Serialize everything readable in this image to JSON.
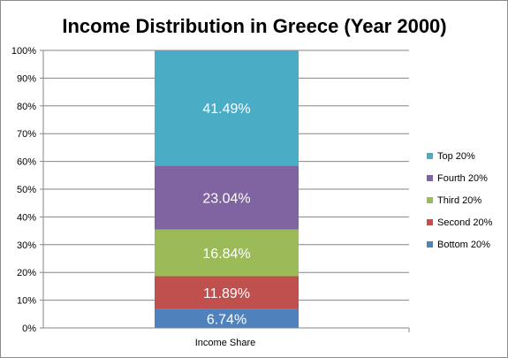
{
  "chart_data": {
    "type": "bar",
    "stacked": true,
    "title": "Income Distribution in Greece (Year 2000)",
    "categories": [
      "Income Share"
    ],
    "series": [
      {
        "name": "Bottom 20%",
        "values": [
          6.74
        ],
        "label": "6.74%",
        "color": "#4f81bd"
      },
      {
        "name": "Second 20%",
        "values": [
          11.89
        ],
        "label": "11.89%",
        "color": "#c0504d"
      },
      {
        "name": "Third 20%",
        "values": [
          16.84
        ],
        "label": "16.84%",
        "color": "#9bbb59"
      },
      {
        "name": "Fourth 20%",
        "values": [
          23.04
        ],
        "label": "23.04%",
        "color": "#8064a2"
      },
      {
        "name": "Top 20%",
        "values": [
          41.49
        ],
        "label": "41.49%",
        "color": "#4bacc6"
      }
    ],
    "ylim": [
      0,
      100
    ],
    "yticks": [
      "0%",
      "10%",
      "20%",
      "30%",
      "40%",
      "50%",
      "60%",
      "70%",
      "80%",
      "90%",
      "100%"
    ],
    "grid": true,
    "legend_position": "right"
  }
}
